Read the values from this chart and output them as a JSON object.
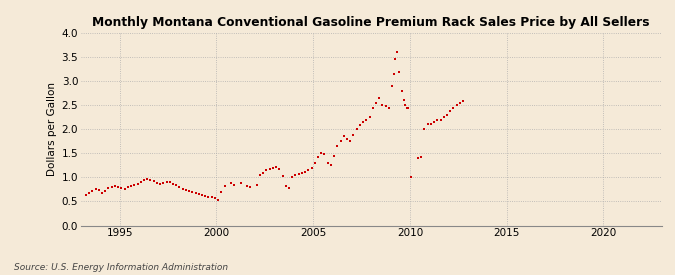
{
  "title": "Monthly Montana Conventional Gasoline Premium Rack Sales Price by All Sellers",
  "ylabel": "Dollars per Gallon",
  "source": "Source: U.S. Energy Information Administration",
  "background_color": "#f5ead8",
  "dot_color": "#cc0000",
  "ylim": [
    0.0,
    4.0
  ],
  "xlim": [
    1993.0,
    2023.0
  ],
  "yticks": [
    0.0,
    0.5,
    1.0,
    1.5,
    2.0,
    2.5,
    3.0,
    3.5,
    4.0
  ],
  "xticks": [
    1995,
    2000,
    2005,
    2010,
    2015,
    2020
  ],
  "data": [
    [
      1993.25,
      0.63
    ],
    [
      1993.42,
      0.67
    ],
    [
      1993.58,
      0.72
    ],
    [
      1993.75,
      0.75
    ],
    [
      1993.92,
      0.73
    ],
    [
      1994.08,
      0.68
    ],
    [
      1994.25,
      0.72
    ],
    [
      1994.42,
      0.77
    ],
    [
      1994.58,
      0.8
    ],
    [
      1994.75,
      0.83
    ],
    [
      1994.92,
      0.8
    ],
    [
      1995.08,
      0.78
    ],
    [
      1995.25,
      0.75
    ],
    [
      1995.42,
      0.79
    ],
    [
      1995.58,
      0.82
    ],
    [
      1995.75,
      0.84
    ],
    [
      1995.92,
      0.86
    ],
    [
      1996.08,
      0.9
    ],
    [
      1996.25,
      0.94
    ],
    [
      1996.42,
      0.97
    ],
    [
      1996.58,
      0.95
    ],
    [
      1996.75,
      0.92
    ],
    [
      1996.92,
      0.88
    ],
    [
      1997.08,
      0.86
    ],
    [
      1997.25,
      0.88
    ],
    [
      1997.42,
      0.91
    ],
    [
      1997.58,
      0.9
    ],
    [
      1997.75,
      0.87
    ],
    [
      1997.92,
      0.84
    ],
    [
      1998.08,
      0.8
    ],
    [
      1998.25,
      0.76
    ],
    [
      1998.42,
      0.73
    ],
    [
      1998.58,
      0.71
    ],
    [
      1998.75,
      0.7
    ],
    [
      1998.92,
      0.68
    ],
    [
      1999.08,
      0.66
    ],
    [
      1999.25,
      0.64
    ],
    [
      1999.42,
      0.62
    ],
    [
      1999.58,
      0.6
    ],
    [
      1999.75,
      0.59
    ],
    [
      1999.92,
      0.57
    ],
    [
      2000.08,
      0.52
    ],
    [
      2000.25,
      0.7
    ],
    [
      2000.42,
      0.82
    ],
    [
      2000.75,
      0.88
    ],
    [
      2000.92,
      0.85
    ],
    [
      2001.25,
      0.88
    ],
    [
      2001.58,
      0.82
    ],
    [
      2001.75,
      0.79
    ],
    [
      2002.08,
      0.85
    ],
    [
      2002.25,
      1.05
    ],
    [
      2002.42,
      1.1
    ],
    [
      2002.58,
      1.15
    ],
    [
      2002.75,
      1.18
    ],
    [
      2002.92,
      1.2
    ],
    [
      2003.08,
      1.22
    ],
    [
      2003.25,
      1.18
    ],
    [
      2003.42,
      1.02
    ],
    [
      2003.58,
      0.82
    ],
    [
      2003.75,
      0.78
    ],
    [
      2003.92,
      1.0
    ],
    [
      2004.08,
      1.05
    ],
    [
      2004.25,
      1.08
    ],
    [
      2004.42,
      1.1
    ],
    [
      2004.58,
      1.12
    ],
    [
      2004.75,
      1.15
    ],
    [
      2004.92,
      1.2
    ],
    [
      2005.08,
      1.3
    ],
    [
      2005.25,
      1.42
    ],
    [
      2005.42,
      1.5
    ],
    [
      2005.58,
      1.48
    ],
    [
      2005.75,
      1.3
    ],
    [
      2005.92,
      1.25
    ],
    [
      2006.08,
      1.45
    ],
    [
      2006.25,
      1.65
    ],
    [
      2006.42,
      1.75
    ],
    [
      2006.58,
      1.85
    ],
    [
      2006.75,
      1.8
    ],
    [
      2006.92,
      1.75
    ],
    [
      2007.08,
      1.88
    ],
    [
      2007.25,
      2.0
    ],
    [
      2007.42,
      2.08
    ],
    [
      2007.58,
      2.15
    ],
    [
      2007.75,
      2.2
    ],
    [
      2007.92,
      2.25
    ],
    [
      2008.08,
      2.45
    ],
    [
      2008.25,
      2.55
    ],
    [
      2008.42,
      2.65
    ],
    [
      2008.58,
      2.5
    ],
    [
      2008.75,
      2.48
    ],
    [
      2008.92,
      2.45
    ],
    [
      2009.08,
      2.9
    ],
    [
      2009.17,
      3.15
    ],
    [
      2009.25,
      3.45
    ],
    [
      2009.33,
      3.6
    ],
    [
      2009.42,
      3.2
    ],
    [
      2009.58,
      2.8
    ],
    [
      2009.67,
      2.6
    ],
    [
      2009.75,
      2.5
    ],
    [
      2009.83,
      2.45
    ],
    [
      2009.92,
      2.45
    ],
    [
      2010.08,
      1.0
    ],
    [
      2010.42,
      1.4
    ],
    [
      2010.58,
      1.42
    ],
    [
      2010.75,
      2.0
    ],
    [
      2010.92,
      2.1
    ],
    [
      2011.08,
      2.1
    ],
    [
      2011.25,
      2.15
    ],
    [
      2011.42,
      2.2
    ],
    [
      2011.58,
      2.2
    ],
    [
      2011.75,
      2.25
    ],
    [
      2011.92,
      2.3
    ],
    [
      2012.08,
      2.38
    ],
    [
      2012.25,
      2.45
    ],
    [
      2012.42,
      2.5
    ],
    [
      2012.58,
      2.55
    ],
    [
      2012.75,
      2.58
    ]
  ]
}
